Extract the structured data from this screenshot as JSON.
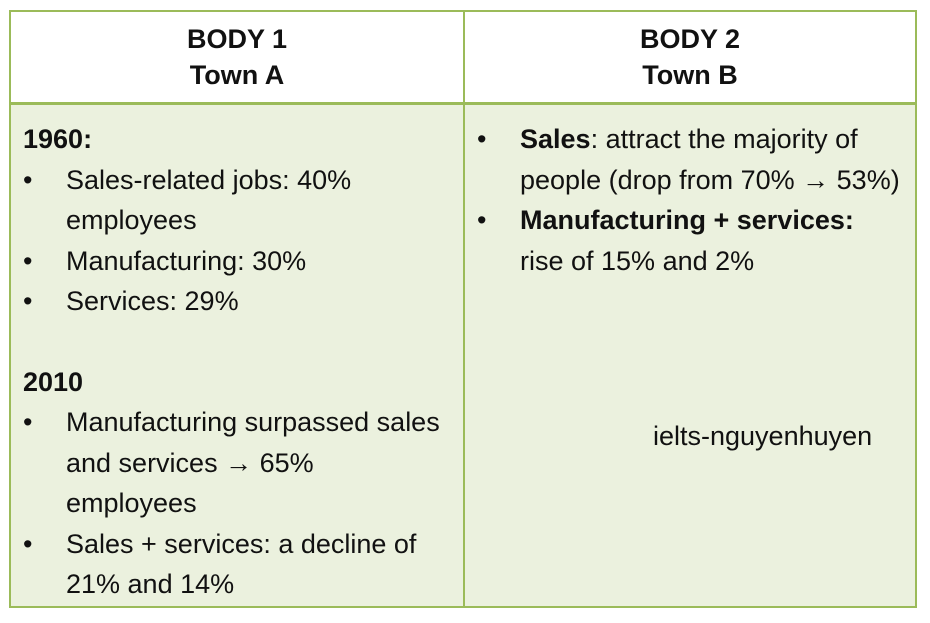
{
  "header": {
    "left": {
      "line1": "BODY 1",
      "line2": "Town A"
    },
    "right": {
      "line1": "BODY 2",
      "line2": "Town B"
    }
  },
  "left": {
    "section1": {
      "year": "1960:",
      "items": [
        "Sales-related jobs: 40% employees",
        "Manufacturing: 30%",
        "Services: 29%"
      ]
    },
    "section2": {
      "year": "2010",
      "items": [
        "Manufacturing surpassed sales and services → 65% employees",
        "Sales + services: a decline of 21% and 14%"
      ]
    }
  },
  "right": {
    "items": [
      {
        "bold": "Sales",
        "text": ": attract the majority of people (drop from 70% → 53%)"
      },
      {
        "bold": "Manufacturing + services:",
        "text": " rise of 15% and 2%"
      }
    ],
    "watermark": "ielts-nguyenhuyen"
  }
}
